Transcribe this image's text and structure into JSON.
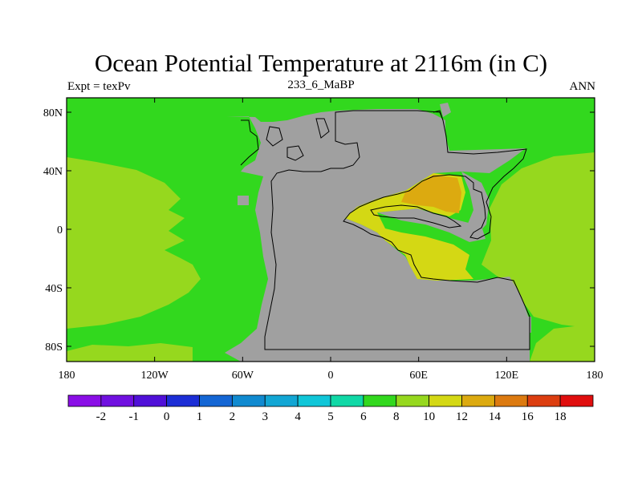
{
  "title": "Ocean Potential Temperature at 2116m (in C)",
  "left_label": "Expt = texPv",
  "center_label": "233_6_MaBP",
  "right_label": "ANN",
  "map": {
    "x_ticks": [
      "180",
      "120W",
      "60W",
      "0",
      "60E",
      "120E",
      "180"
    ],
    "y_ticks": [
      "80N",
      "40N",
      "0",
      "40S",
      "80S"
    ],
    "land_color": "#a0a0a0",
    "coast_color": "#000000"
  },
  "colorbar": {
    "labels": [
      "-2",
      "-1",
      "0",
      "1",
      "2",
      "3",
      "4",
      "5",
      "6",
      "8",
      "10",
      "12",
      "14",
      "16",
      "18"
    ],
    "colors": [
      "#8a0ee6",
      "#7010e0",
      "#5010d8",
      "#1c2ed6",
      "#1466d4",
      "#108ad0",
      "#12a6d4",
      "#10c6d8",
      "#10d8a6",
      "#32d81e",
      "#96d81e",
      "#d4d814",
      "#dcaa10",
      "#dc7a10",
      "#dc3e10",
      "#e00e0e"
    ]
  }
}
